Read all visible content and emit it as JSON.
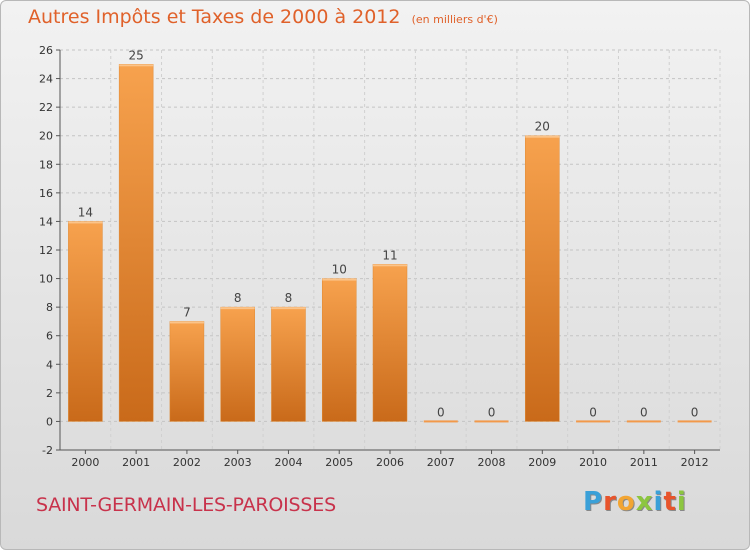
{
  "title": "Autres Impôts et Taxes de 2000 à 2012",
  "subtitle": "(en milliers d'€)",
  "commune": "SAINT-GERMAIN-LES-PAROISSES",
  "logo": {
    "letters": [
      "P",
      "r",
      "o",
      "x",
      "i",
      "t",
      "i"
    ],
    "colors": [
      "#3aa0d8",
      "#e8542b",
      "#f2a533",
      "#8cc63f",
      "#3aa0d8",
      "#e8542b",
      "#8cc63f"
    ]
  },
  "colors": {
    "bar": "#f2994a",
    "bar_dark": "#c96a1a",
    "title": "#e0612a",
    "commune": "#c8324b"
  },
  "chart_data": {
    "type": "bar",
    "categories": [
      "2000",
      "2001",
      "2002",
      "2003",
      "2004",
      "2005",
      "2006",
      "2007",
      "2008",
      "2009",
      "2010",
      "2011",
      "2012"
    ],
    "values": [
      14,
      25,
      7,
      8,
      8,
      10,
      11,
      0,
      0,
      20,
      0,
      0,
      0
    ],
    "value_labels": [
      "14",
      "25",
      "7",
      "8",
      "8",
      "10",
      "11",
      "0",
      "0",
      "20",
      "0",
      "0",
      "0"
    ],
    "yticks": [
      "-2",
      "0",
      "2",
      "4",
      "6",
      "8",
      "10",
      "12",
      "14",
      "16",
      "18",
      "20",
      "22",
      "24",
      "26"
    ],
    "ylim": [
      -2,
      26
    ],
    "grid": true
  }
}
